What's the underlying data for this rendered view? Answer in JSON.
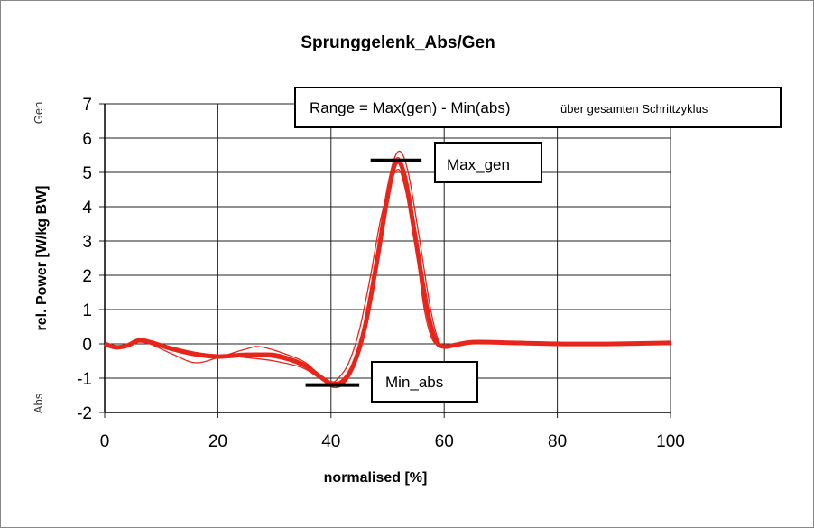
{
  "chart_data": {
    "type": "line",
    "title": "Sprunggelenk_Abs/Gen",
    "xlabel": "normalised [%]",
    "ylabel": "rel. Power [W/kg BW]",
    "side_labels": {
      "top": "Gen",
      "bottom": "Abs"
    },
    "xlim": [
      0,
      100
    ],
    "ylim": [
      -2,
      7
    ],
    "xticks": [
      0,
      20,
      40,
      60,
      80,
      100
    ],
    "yticks": [
      -2,
      -1,
      0,
      1,
      2,
      3,
      4,
      5,
      6,
      7
    ],
    "grid": true,
    "line_color": "#e8251b",
    "series": [
      {
        "style": "mean",
        "x": [
          0,
          2,
          4,
          6,
          8,
          12,
          16,
          20,
          25,
          30,
          35,
          38,
          40,
          42,
          44,
          46,
          48,
          50,
          51.5,
          53,
          55,
          57,
          58.5,
          60,
          62,
          65,
          70,
          80,
          90,
          100
        ],
        "y": [
          0,
          -0.1,
          -0.05,
          0.1,
          0.05,
          -0.15,
          -0.3,
          -0.37,
          -0.32,
          -0.35,
          -0.6,
          -0.95,
          -1.15,
          -1.1,
          -0.6,
          0.5,
          2.3,
          4.3,
          5.3,
          4.9,
          3.0,
          1.0,
          0.1,
          -0.08,
          -0.03,
          0.05,
          0.04,
          0.0,
          0.0,
          0.03
        ]
      },
      {
        "style": "trial",
        "x": [
          0,
          2,
          4,
          6,
          8,
          12,
          16,
          20,
          25,
          28,
          35,
          38,
          40,
          42,
          44,
          46,
          48,
          50,
          51.8,
          53.5,
          55.5,
          57.5,
          59,
          60.5,
          63,
          66,
          70,
          80,
          90,
          100
        ],
        "y": [
          0,
          -0.1,
          -0.05,
          0.08,
          0.0,
          -0.3,
          -0.55,
          -0.4,
          -0.15,
          -0.1,
          -0.5,
          -0.95,
          -1.25,
          -1.2,
          -0.7,
          0.5,
          2.5,
          4.6,
          5.6,
          5.1,
          3.2,
          1.1,
          0.1,
          -0.08,
          -0.03,
          0.05,
          0.04,
          0.0,
          0.0,
          0.03
        ]
      },
      {
        "style": "trial",
        "x": [
          0,
          2,
          4,
          6,
          8,
          12,
          16,
          20,
          25,
          30,
          35,
          38,
          40,
          41,
          43,
          45,
          47,
          49,
          51.5,
          53,
          55,
          56.5,
          58,
          60,
          62,
          65,
          70,
          80,
          90,
          100
        ],
        "y": [
          0,
          -0.12,
          -0.05,
          0.1,
          0.05,
          -0.12,
          -0.25,
          -0.33,
          -0.4,
          -0.5,
          -0.7,
          -1.0,
          -1.1,
          -1.05,
          -0.6,
          0.4,
          2.0,
          3.8,
          5.05,
          4.6,
          2.8,
          1.0,
          0.1,
          -0.08,
          -0.03,
          0.05,
          0.04,
          0.0,
          0.0,
          0.03
        ]
      },
      {
        "style": "trial",
        "x": [
          0,
          2,
          4,
          6,
          8,
          12,
          16,
          20,
          25,
          30,
          35,
          38,
          40,
          42,
          44,
          46,
          48,
          50,
          51.5,
          53,
          55,
          57,
          58.5,
          60,
          62,
          65,
          70,
          80,
          90,
          100
        ],
        "y": [
          0,
          -0.1,
          -0.05,
          0.12,
          0.08,
          -0.1,
          -0.25,
          -0.35,
          -0.3,
          -0.28,
          -0.55,
          -0.9,
          -1.15,
          -1.05,
          -0.55,
          0.6,
          2.4,
          4.4,
          5.4,
          5.0,
          3.1,
          1.0,
          0.1,
          -0.08,
          -0.03,
          0.05,
          0.04,
          0.0,
          0.0,
          0.03
        ]
      }
    ],
    "annotations": {
      "range_note": "Range = Max(gen) - Min(abs)",
      "range_note_small": "über gesamten Schrittzyklus",
      "max_label": "Max_gen",
      "min_label": "Min_abs",
      "max_marker": {
        "y": 5.35,
        "x": [
          47,
          56
        ]
      },
      "min_marker": {
        "y": -1.2,
        "x": [
          35.5,
          45
        ]
      }
    }
  }
}
